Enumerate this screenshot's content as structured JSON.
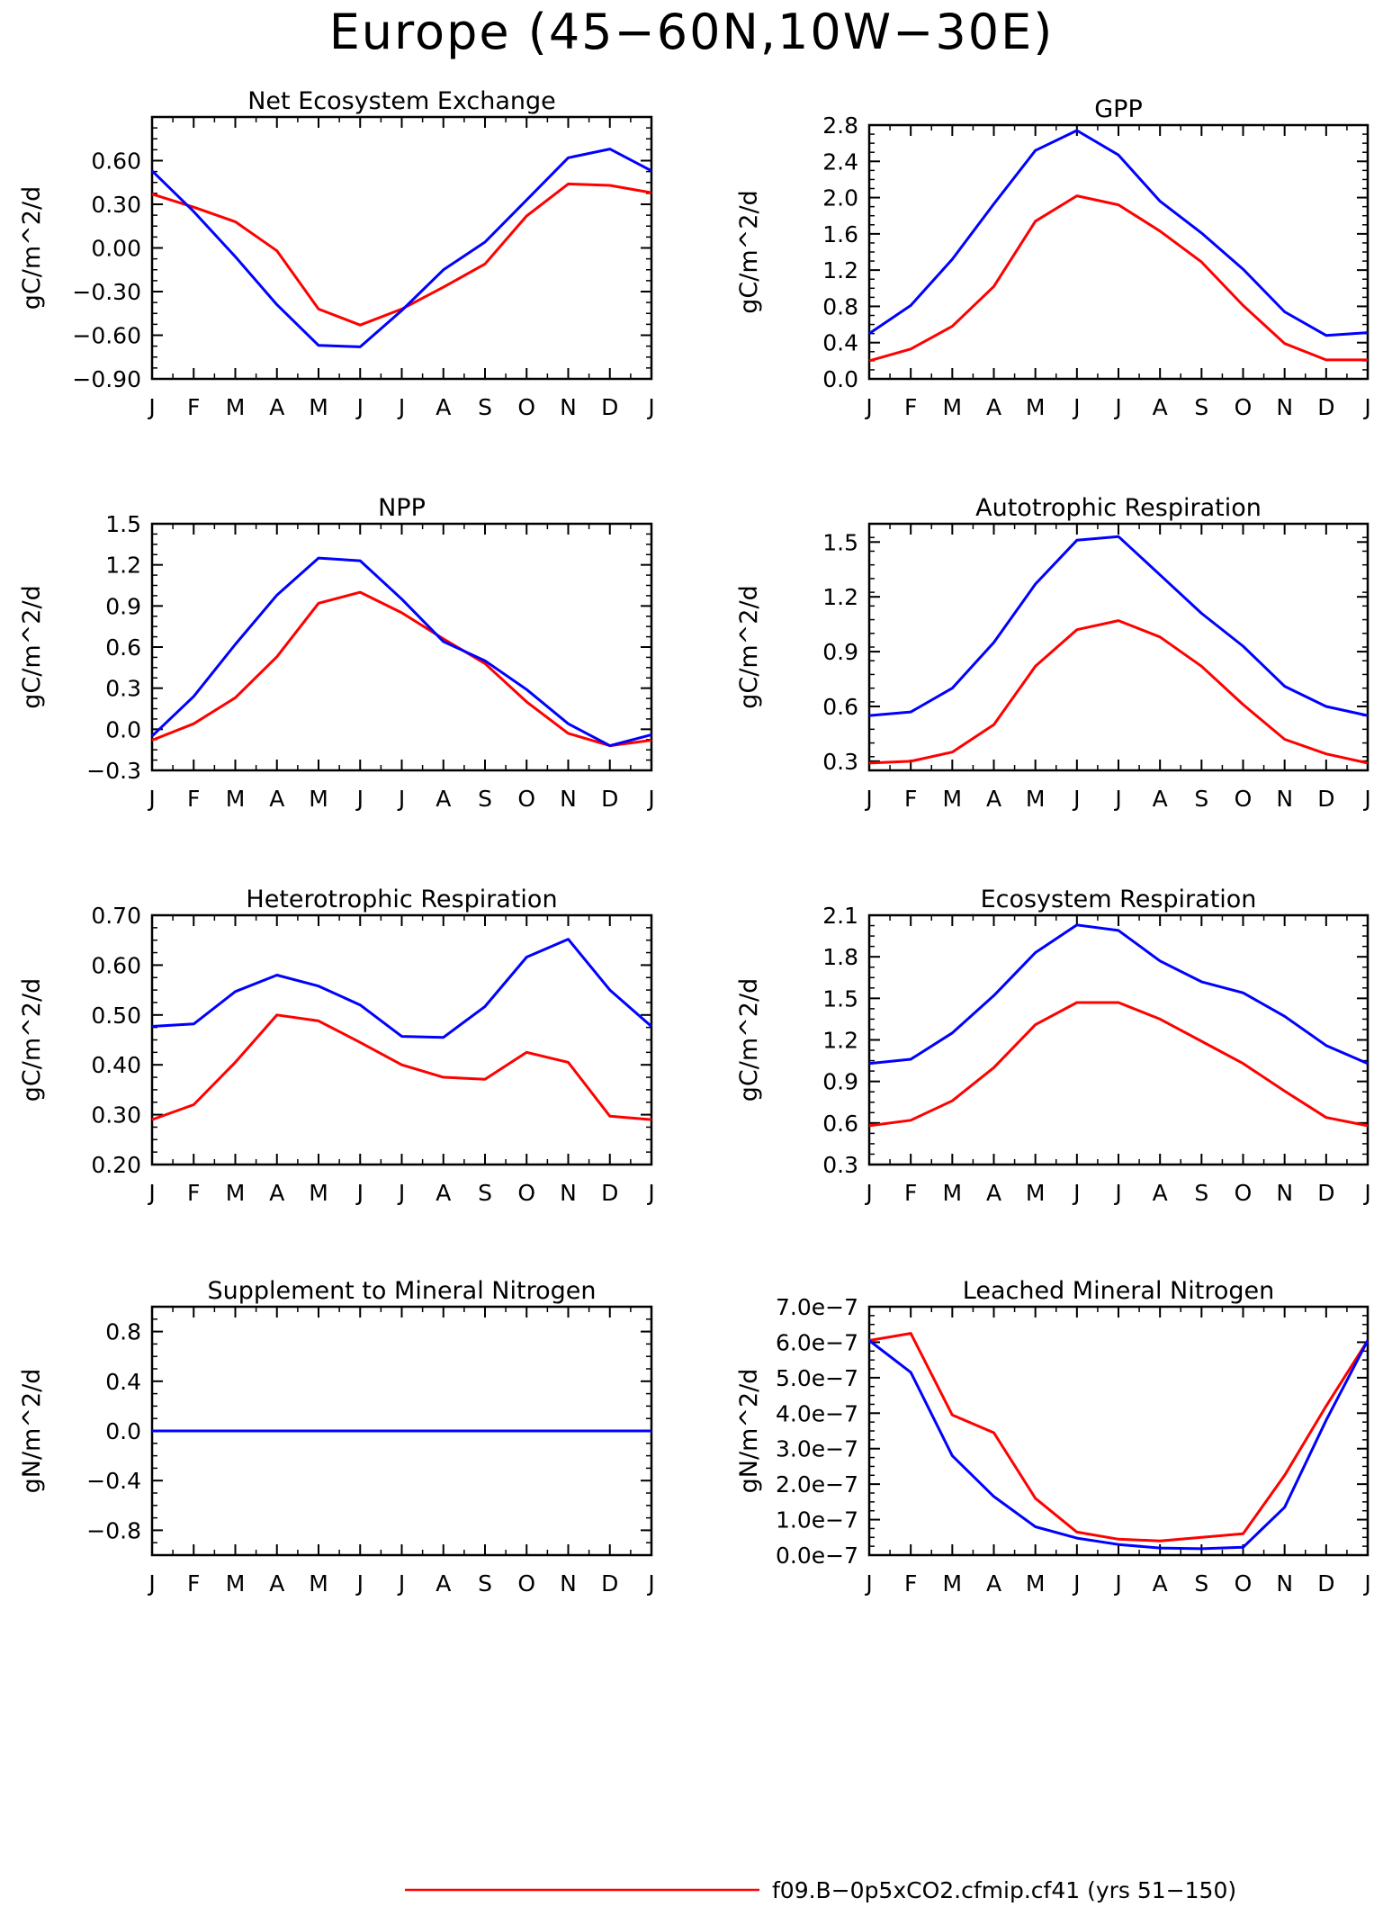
{
  "page_title": "Europe (45−60N,10W−30E)",
  "colors": {
    "series1": "#ff0000",
    "series2": "#0000ff",
    "axis": "#000000"
  },
  "legend": {
    "label": "f09.B−0p5xCO2.cfmip.cf41 (yrs 51−150)",
    "color": "#ff0000"
  },
  "chart_data": [
    {
      "type": "line",
      "title": "Net Ecosystem Exchange",
      "ylabel": "gC/m^2/d",
      "categories": [
        "J",
        "F",
        "M",
        "A",
        "M",
        "J",
        "J",
        "A",
        "S",
        "O",
        "N",
        "D",
        "J"
      ],
      "ylim": [
        -0.9,
        0.9
      ],
      "yticks": [
        -0.9,
        -0.6,
        -0.3,
        0.0,
        0.3,
        0.6
      ],
      "yticklabels": [
        "−0.90",
        "−0.60",
        "−0.30",
        "0.00",
        "0.30",
        "0.60"
      ],
      "series": [
        {
          "color": "#ff0000",
          "values": [
            0.37,
            0.28,
            0.18,
            -0.02,
            -0.42,
            -0.53,
            -0.42,
            -0.27,
            -0.11,
            0.22,
            0.44,
            0.43,
            0.38
          ]
        },
        {
          "color": "#0000ff",
          "values": [
            0.53,
            0.25,
            -0.06,
            -0.39,
            -0.67,
            -0.68,
            -0.43,
            -0.15,
            0.04,
            0.33,
            0.62,
            0.68,
            0.53
          ]
        }
      ]
    },
    {
      "type": "line",
      "title": "GPP",
      "ylabel": "gC/m^2/d",
      "categories": [
        "J",
        "F",
        "M",
        "A",
        "M",
        "J",
        "J",
        "A",
        "S",
        "O",
        "N",
        "D",
        "J"
      ],
      "ylim": [
        0.0,
        2.8
      ],
      "yticks": [
        0.0,
        0.4,
        0.8,
        1.2,
        1.6,
        2.0,
        2.4,
        2.8
      ],
      "yticklabels": [
        "0.0",
        "0.4",
        "0.8",
        "1.2",
        "1.6",
        "2.0",
        "2.4",
        "2.8"
      ],
      "series": [
        {
          "color": "#ff0000",
          "values": [
            0.2,
            0.33,
            0.58,
            1.02,
            1.74,
            2.02,
            1.92,
            1.63,
            1.29,
            0.81,
            0.39,
            0.21,
            0.21
          ]
        },
        {
          "color": "#0000ff",
          "values": [
            0.5,
            0.81,
            1.32,
            1.93,
            2.52,
            2.74,
            2.47,
            1.96,
            1.61,
            1.21,
            0.74,
            0.48,
            0.51
          ]
        }
      ]
    },
    {
      "type": "line",
      "title": "NPP",
      "ylabel": "gC/m^2/d",
      "categories": [
        "J",
        "F",
        "M",
        "A",
        "M",
        "J",
        "J",
        "A",
        "S",
        "O",
        "N",
        "D",
        "J"
      ],
      "ylim": [
        -0.3,
        1.5
      ],
      "yticks": [
        -0.3,
        0.0,
        0.3,
        0.6,
        0.9,
        1.2,
        1.5
      ],
      "yticklabels": [
        "−0.3",
        "0.0",
        "0.3",
        "0.6",
        "0.9",
        "1.2",
        "1.5"
      ],
      "series": [
        {
          "color": "#ff0000",
          "values": [
            -0.08,
            0.04,
            0.23,
            0.53,
            0.92,
            1.0,
            0.85,
            0.66,
            0.48,
            0.2,
            -0.03,
            -0.12,
            -0.08
          ]
        },
        {
          "color": "#0000ff",
          "values": [
            -0.05,
            0.24,
            0.62,
            0.98,
            1.25,
            1.23,
            0.95,
            0.64,
            0.5,
            0.29,
            0.04,
            -0.12,
            -0.04
          ]
        }
      ]
    },
    {
      "type": "line",
      "title": "Autotrophic Respiration",
      "ylabel": "gC/m^2/d",
      "categories": [
        "J",
        "F",
        "M",
        "A",
        "M",
        "J",
        "J",
        "A",
        "S",
        "O",
        "N",
        "D",
        "J"
      ],
      "ylim": [
        0.25,
        1.6
      ],
      "yticks": [
        0.3,
        0.6,
        0.9,
        1.2,
        1.5
      ],
      "yticklabels": [
        "0.3",
        "0.6",
        "0.9",
        "1.2",
        "1.5"
      ],
      "series": [
        {
          "color": "#ff0000",
          "values": [
            0.29,
            0.3,
            0.35,
            0.5,
            0.82,
            1.02,
            1.07,
            0.98,
            0.82,
            0.61,
            0.42,
            0.34,
            0.29
          ]
        },
        {
          "color": "#0000ff",
          "values": [
            0.55,
            0.57,
            0.7,
            0.95,
            1.27,
            1.51,
            1.53,
            1.32,
            1.11,
            0.93,
            0.71,
            0.6,
            0.55
          ]
        }
      ]
    },
    {
      "type": "line",
      "title": "Heterotrophic Respiration",
      "ylabel": "gC/m^2/d",
      "categories": [
        "J",
        "F",
        "M",
        "A",
        "M",
        "J",
        "J",
        "A",
        "S",
        "O",
        "N",
        "D",
        "J"
      ],
      "ylim": [
        0.2,
        0.7
      ],
      "yticks": [
        0.2,
        0.3,
        0.4,
        0.5,
        0.6,
        0.7
      ],
      "yticklabels": [
        "0.20",
        "0.30",
        "0.40",
        "0.50",
        "0.60",
        "0.70"
      ],
      "series": [
        {
          "color": "#ff0000",
          "values": [
            0.29,
            0.32,
            0.405,
            0.5,
            0.488,
            0.445,
            0.4,
            0.375,
            0.371,
            0.425,
            0.405,
            0.297,
            0.29
          ]
        },
        {
          "color": "#0000ff",
          "values": [
            0.477,
            0.482,
            0.547,
            0.58,
            0.558,
            0.52,
            0.457,
            0.455,
            0.517,
            0.616,
            0.652,
            0.55,
            0.477
          ]
        }
      ]
    },
    {
      "type": "line",
      "title": "Ecosystem Respiration",
      "ylabel": "gC/m^2/d",
      "categories": [
        "J",
        "F",
        "M",
        "A",
        "M",
        "J",
        "J",
        "A",
        "S",
        "O",
        "N",
        "D",
        "J"
      ],
      "ylim": [
        0.3,
        2.1
      ],
      "yticks": [
        0.3,
        0.6,
        0.9,
        1.2,
        1.5,
        1.8,
        2.1
      ],
      "yticklabels": [
        "0.3",
        "0.6",
        "0.9",
        "1.2",
        "1.5",
        "1.8",
        "2.1"
      ],
      "series": [
        {
          "color": "#ff0000",
          "values": [
            0.58,
            0.62,
            0.76,
            1.0,
            1.31,
            1.47,
            1.47,
            1.35,
            1.19,
            1.03,
            0.83,
            0.64,
            0.58
          ]
        },
        {
          "color": "#0000ff",
          "values": [
            1.03,
            1.06,
            1.25,
            1.52,
            1.83,
            2.03,
            1.99,
            1.77,
            1.62,
            1.54,
            1.37,
            1.16,
            1.03
          ]
        }
      ]
    },
    {
      "type": "line",
      "title": "Supplement to Mineral Nitrogen",
      "ylabel": "gN/m^2/d",
      "categories": [
        "J",
        "F",
        "M",
        "A",
        "M",
        "J",
        "J",
        "A",
        "S",
        "O",
        "N",
        "D",
        "J"
      ],
      "ylim": [
        -1.0,
        1.0
      ],
      "yticks": [
        -0.8,
        -0.4,
        0.0,
        0.4,
        0.8
      ],
      "yticklabels": [
        "−0.8",
        "−0.4",
        "0.0",
        "0.4",
        "0.8"
      ],
      "series": [
        {
          "color": "#ff0000",
          "values": [
            0,
            0,
            0,
            0,
            0,
            0,
            0,
            0,
            0,
            0,
            0,
            0,
            0
          ]
        },
        {
          "color": "#0000ff",
          "values": [
            0,
            0,
            0,
            0,
            0,
            0,
            0,
            0,
            0,
            0,
            0,
            0,
            0
          ]
        }
      ]
    },
    {
      "type": "line",
      "title": "Leached Mineral Nitrogen",
      "ylabel": "gN/m^2/d",
      "categories": [
        "J",
        "F",
        "M",
        "A",
        "M",
        "J",
        "J",
        "A",
        "S",
        "O",
        "N",
        "D",
        "J"
      ],
      "ylim": [
        0.0,
        7e-07
      ],
      "yticks": [
        0.0,
        1e-07,
        2e-07,
        3e-07,
        4e-07,
        5e-07,
        6e-07,
        7e-07
      ],
      "yticklabels": [
        "0.0e−7",
        "1.0e−7",
        "2.0e−7",
        "3.0e−7",
        "4.0e−7",
        "5.0e−7",
        "6.0e−7",
        "7.0e−7"
      ],
      "series": [
        {
          "color": "#ff0000",
          "values": [
            6.05e-07,
            6.25e-07,
            3.95e-07,
            3.45e-07,
            1.6e-07,
            6.5e-08,
            4.5e-08,
            4e-08,
            5e-08,
            6e-08,
            2.25e-07,
            4.2e-07,
            6.05e-07
          ]
        },
        {
          "color": "#0000ff",
          "values": [
            6.05e-07,
            5.15e-07,
            2.8e-07,
            1.65e-07,
            8e-08,
            4.8e-08,
            3e-08,
            2e-08,
            1.8e-08,
            2.2e-08,
            1.35e-07,
            3.8e-07,
            6.05e-07
          ]
        }
      ]
    }
  ]
}
